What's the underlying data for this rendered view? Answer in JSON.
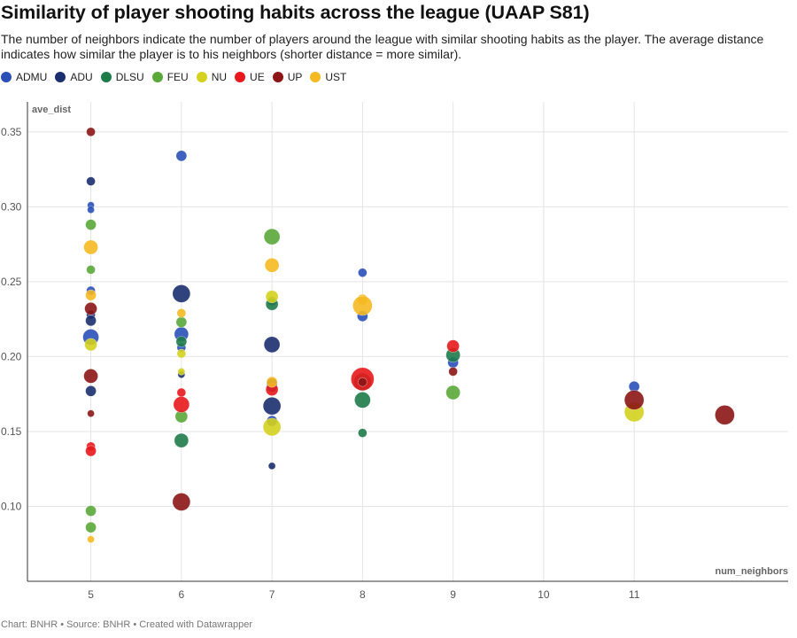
{
  "header": {
    "title": "Similarity of player shooting habits across the league (UAAP S81)",
    "description": "The number of neighbors indicate the number of players around the league with similar shooting habits as the player. The average distance indicates how similar the player is to his neighbors (shorter distance = more similar)."
  },
  "footer": {
    "text": "Chart: BNHR • Source: BNHR • Created with Datawrapper"
  },
  "chart_data": {
    "type": "scatter",
    "xlabel": "num_neighbors",
    "ylabel": "ave_dist",
    "xlim": [
      4.3,
      12.7
    ],
    "ylim": [
      0.05,
      0.37
    ],
    "x_ticks": [
      5,
      6,
      7,
      8,
      9,
      10,
      11
    ],
    "y_ticks": [
      0.1,
      0.15,
      0.2,
      0.25,
      0.3,
      0.35
    ],
    "y_tick_labels": [
      "0.10",
      "0.15",
      "0.20",
      "0.25",
      "0.30",
      "0.35"
    ],
    "grid": true,
    "legend_placement": "top-left",
    "series": [
      {
        "name": "ADMU",
        "color": "#2a50b8",
        "points": [
          {
            "x": 5,
            "y": 0.301,
            "r": 4
          },
          {
            "x": 5,
            "y": 0.298,
            "r": 4
          },
          {
            "x": 5,
            "y": 0.244,
            "r": 5
          },
          {
            "x": 5,
            "y": 0.213,
            "r": 9
          },
          {
            "x": 6,
            "y": 0.334,
            "r": 6
          },
          {
            "x": 6,
            "y": 0.215,
            "r": 8
          },
          {
            "x": 6,
            "y": 0.206,
            "r": 5
          },
          {
            "x": 7,
            "y": 0.18,
            "r": 6
          },
          {
            "x": 7,
            "y": 0.157,
            "r": 6
          },
          {
            "x": 8,
            "y": 0.256,
            "r": 5
          },
          {
            "x": 8,
            "y": 0.227,
            "r": 6
          },
          {
            "x": 9,
            "y": 0.196,
            "r": 6
          },
          {
            "x": 11,
            "y": 0.18,
            "r": 6
          }
        ]
      },
      {
        "name": "ADU",
        "color": "#1b2f6e",
        "points": [
          {
            "x": 5,
            "y": 0.317,
            "r": 5
          },
          {
            "x": 5,
            "y": 0.228,
            "r": 5
          },
          {
            "x": 5,
            "y": 0.224,
            "r": 6
          },
          {
            "x": 5,
            "y": 0.177,
            "r": 6
          },
          {
            "x": 6,
            "y": 0.242,
            "r": 10
          },
          {
            "x": 6,
            "y": 0.188,
            "r": 4
          },
          {
            "x": 7,
            "y": 0.237,
            "r": 5
          },
          {
            "x": 7,
            "y": 0.208,
            "r": 9
          },
          {
            "x": 7,
            "y": 0.182,
            "r": 6
          },
          {
            "x": 7,
            "y": 0.167,
            "r": 10
          },
          {
            "x": 7,
            "y": 0.127,
            "r": 4
          }
        ]
      },
      {
        "name": "DLSU",
        "color": "#1e7b4a",
        "points": [
          {
            "x": 6,
            "y": 0.21,
            "r": 6
          },
          {
            "x": 6,
            "y": 0.144,
            "r": 8
          },
          {
            "x": 7,
            "y": 0.235,
            "r": 7
          },
          {
            "x": 8,
            "y": 0.183,
            "r": 10
          },
          {
            "x": 8,
            "y": 0.171,
            "r": 9
          },
          {
            "x": 8,
            "y": 0.149,
            "r": 5
          },
          {
            "x": 9,
            "y": 0.201,
            "r": 8
          }
        ]
      },
      {
        "name": "FEU",
        "color": "#5aa83a",
        "points": [
          {
            "x": 5,
            "y": 0.288,
            "r": 6
          },
          {
            "x": 5,
            "y": 0.258,
            "r": 5
          },
          {
            "x": 5,
            "y": 0.097,
            "r": 6
          },
          {
            "x": 5,
            "y": 0.086,
            "r": 6
          },
          {
            "x": 6,
            "y": 0.223,
            "r": 6
          },
          {
            "x": 6,
            "y": 0.16,
            "r": 7
          },
          {
            "x": 7,
            "y": 0.28,
            "r": 9
          },
          {
            "x": 9,
            "y": 0.176,
            "r": 8
          }
        ]
      },
      {
        "name": "NU",
        "color": "#d4d21e",
        "points": [
          {
            "x": 5,
            "y": 0.208,
            "r": 7
          },
          {
            "x": 6,
            "y": 0.202,
            "r": 5
          },
          {
            "x": 6,
            "y": 0.19,
            "r": 4
          },
          {
            "x": 7,
            "y": 0.24,
            "r": 7
          },
          {
            "x": 7,
            "y": 0.153,
            "r": 10
          },
          {
            "x": 11,
            "y": 0.163,
            "r": 11
          }
        ]
      },
      {
        "name": "UE",
        "color": "#e8181c",
        "points": [
          {
            "x": 5,
            "y": 0.14,
            "r": 5
          },
          {
            "x": 5,
            "y": 0.137,
            "r": 6
          },
          {
            "x": 6,
            "y": 0.176,
            "r": 5
          },
          {
            "x": 6,
            "y": 0.168,
            "r": 9
          },
          {
            "x": 7,
            "y": 0.178,
            "r": 7
          },
          {
            "x": 8,
            "y": 0.185,
            "r": 13
          },
          {
            "x": 9,
            "y": 0.207,
            "r": 7
          }
        ]
      },
      {
        "name": "UP",
        "color": "#8c1515",
        "points": [
          {
            "x": 5,
            "y": 0.35,
            "r": 5
          },
          {
            "x": 5,
            "y": 0.232,
            "r": 7
          },
          {
            "x": 5,
            "y": 0.187,
            "r": 8
          },
          {
            "x": 5,
            "y": 0.162,
            "r": 4
          },
          {
            "x": 6,
            "y": 0.103,
            "r": 10
          },
          {
            "x": 8,
            "y": 0.183,
            "r": 5
          },
          {
            "x": 9,
            "y": 0.19,
            "r": 5
          },
          {
            "x": 11,
            "y": 0.171,
            "r": 11
          },
          {
            "x": 12,
            "y": 0.161,
            "r": 11
          }
        ]
      },
      {
        "name": "UST",
        "color": "#f5b921",
        "points": [
          {
            "x": 5,
            "y": 0.273,
            "r": 8
          },
          {
            "x": 5,
            "y": 0.241,
            "r": 6
          },
          {
            "x": 5,
            "y": 0.078,
            "r": 4
          },
          {
            "x": 6,
            "y": 0.229,
            "r": 5
          },
          {
            "x": 7,
            "y": 0.261,
            "r": 8
          },
          {
            "x": 7,
            "y": 0.183,
            "r": 6
          },
          {
            "x": 8,
            "y": 0.238,
            "r": 6
          },
          {
            "x": 8,
            "y": 0.234,
            "r": 11
          }
        ]
      }
    ]
  }
}
